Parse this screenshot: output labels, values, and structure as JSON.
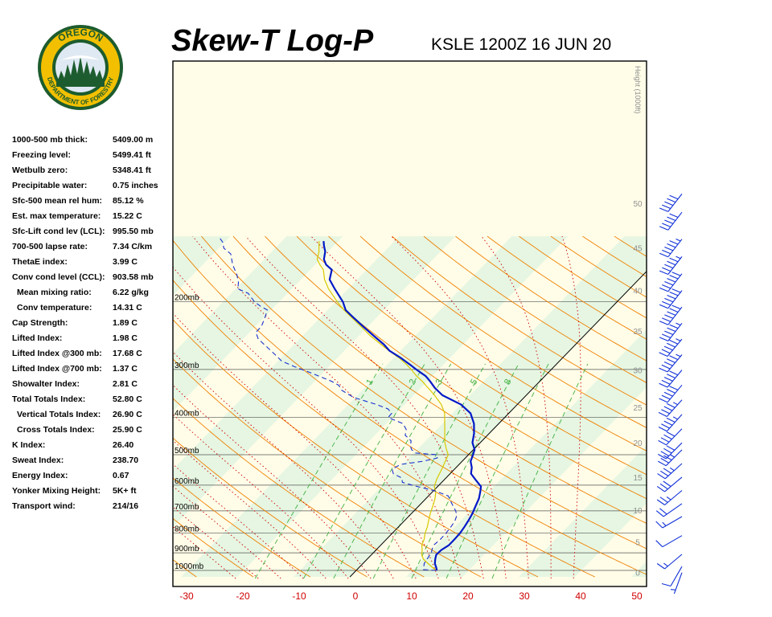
{
  "header": {
    "title": "Skew-T Log-P",
    "station_time": "KSLE 1200Z 16 JUN 20"
  },
  "logo": {
    "text_top": "OREGON",
    "text_bottom": "DEPARTMENT OF FORESTRY"
  },
  "indices": [
    {
      "label": "1000-500 mb thick:",
      "value": "5409.00 m",
      "indent": false
    },
    {
      "label": "Freezing level:",
      "value": "5499.41 ft",
      "indent": false
    },
    {
      "label": "Wetbulb zero:",
      "value": "5348.41 ft",
      "indent": false
    },
    {
      "label": "Precipitable water:",
      "value": "0.75 inches",
      "indent": false
    },
    {
      "label": "Sfc-500 mean rel hum:",
      "value": "85.12 %",
      "indent": false
    },
    {
      "label": "Est. max temperature:",
      "value": "15.22 C",
      "indent": false
    },
    {
      "label": "Sfc-Lift cond lev (LCL):",
      "value": "995.50 mb",
      "indent": false
    },
    {
      "label": "700-500 lapse rate:",
      "value": "7.34 C/km",
      "indent": false
    },
    {
      "label": "ThetaE index:",
      "value": "3.99 C",
      "indent": false
    },
    {
      "label": "Conv cond level (CCL):",
      "value": "903.58 mb",
      "indent": false
    },
    {
      "label": "Mean mixing ratio:",
      "value": "6.22 g/kg",
      "indent": true
    },
    {
      "label": "Conv temperature:",
      "value": "14.31 C",
      "indent": true
    },
    {
      "label": "Cap Strength:",
      "value": "1.89 C",
      "indent": false
    },
    {
      "label": "Lifted Index:",
      "value": "1.98 C",
      "indent": false
    },
    {
      "label": "Lifted Index @300 mb:",
      "value": "17.68 C",
      "indent": false
    },
    {
      "label": "Lifted Index @700 mb:",
      "value": "1.37 C",
      "indent": false
    },
    {
      "label": "Showalter Index:",
      "value": "2.81 C",
      "indent": false
    },
    {
      "label": "Total Totals Index:",
      "value": "52.80 C",
      "indent": false
    },
    {
      "label": "Vertical Totals Index:",
      "value": "26.90 C",
      "indent": true
    },
    {
      "label": "Cross Totals Index:",
      "value": "25.90 C",
      "indent": true
    },
    {
      "label": "K Index:",
      "value": "26.40",
      "indent": false
    },
    {
      "label": "Sweat Index:",
      "value": "238.70",
      "indent": false
    },
    {
      "label": "Energy Index:",
      "value": "0.67",
      "indent": false
    },
    {
      "label": "Yonker Mixing Height:",
      "value": "5K+ ft",
      "indent": false
    },
    {
      "label": "Transport wind:",
      "value": "214/16",
      "indent": false
    }
  ],
  "colors": {
    "temperature": "#0018c8",
    "dewpoint": "#1830d0",
    "parcel": "#d8c800",
    "dry_adiabat": "#f08000",
    "moist_adiabat": "#d00000",
    "mixing_ratio": "#40b040",
    "isotherm_band_a": "#fffde8",
    "isotherm_band_b": "#e6f6e2",
    "isobar": "#555555",
    "x_tick_label": "#d00000",
    "height_label": "#909090",
    "wind_barb": "#1030d8"
  },
  "chart_data": {
    "type": "line",
    "title": "Skew-T Log-P",
    "subtitle": "KSLE 1200Z 16 JUN 20",
    "xlabel": "",
    "ylabel": "",
    "x_ticks": [
      "-30",
      "-20",
      "-10",
      "0",
      "10",
      "20",
      "30",
      "40",
      "50"
    ],
    "isobar_labels": [
      "200mb",
      "300mb",
      "400mb",
      "500mb",
      "600mb",
      "700mb",
      "800mb",
      "900mb",
      "1000mb"
    ],
    "height_axis_label": "Height (1000ft)",
    "height_ticks": [
      "50",
      "45",
      "40",
      "35",
      "30",
      "25",
      "20",
      "15",
      "10",
      "5",
      "0"
    ],
    "mixing_ratio_labels": [
      "1",
      "2",
      "3",
      "5",
      "8"
    ],
    "pressure_range_mb": [
      1040,
      135
    ],
    "temperature_range_c": [
      -30,
      50
    ],
    "series": [
      {
        "key": "temperature",
        "points": [
          [
            14.3,
            1000
          ],
          [
            13.8,
            985
          ],
          [
            12.8,
            960
          ],
          [
            12.1,
            935
          ],
          [
            11.5,
            910
          ],
          [
            11.6,
            885
          ],
          [
            12.1,
            860
          ],
          [
            12.1,
            830
          ],
          [
            12.0,
            800
          ],
          [
            11.7,
            770
          ],
          [
            11.3,
            740
          ],
          [
            10.8,
            710
          ],
          [
            10.1,
            680
          ],
          [
            9.4,
            650
          ],
          [
            8.5,
            625
          ],
          [
            7.7,
            605
          ],
          [
            5.5,
            580
          ],
          [
            3.7,
            560
          ],
          [
            2.8,
            540
          ],
          [
            1.5,
            520
          ],
          [
            0.8,
            500
          ],
          [
            0.2,
            485
          ],
          [
            -1.4,
            465
          ],
          [
            -2.7,
            440
          ],
          [
            -4.4,
            415
          ],
          [
            -6.8,
            390
          ],
          [
            -10.0,
            370
          ],
          [
            -14.9,
            350
          ],
          [
            -17.5,
            335
          ],
          [
            -19.5,
            322
          ],
          [
            -21.2,
            312
          ],
          [
            -24.0,
            300
          ],
          [
            -25.8,
            292
          ],
          [
            -28.7,
            280
          ],
          [
            -32.0,
            268
          ],
          [
            -34.1,
            258
          ],
          [
            -37.4,
            245
          ],
          [
            -40.8,
            232
          ],
          [
            -44.6,
            218
          ],
          [
            -46.8,
            210
          ],
          [
            -48.7,
            200
          ],
          [
            -52.4,
            185
          ],
          [
            -54.9,
            175
          ],
          [
            -56.2,
            165
          ],
          [
            -58.1,
            160
          ],
          [
            -59.4,
            155
          ],
          [
            -60.5,
            148
          ],
          [
            -61.7,
            143
          ],
          [
            -62.6,
            139
          ]
        ]
      },
      {
        "key": "dewpoint",
        "points": [
          [
            14.2,
            1000
          ],
          [
            11.8,
            995
          ],
          [
            10.9,
            960
          ],
          [
            10.6,
            930
          ],
          [
            10.3,
            900
          ],
          [
            9.8,
            880
          ],
          [
            9.4,
            860
          ],
          [
            9.6,
            830
          ],
          [
            9.5,
            800
          ],
          [
            9.4,
            780
          ],
          [
            9.2,
            760
          ],
          [
            8.9,
            740
          ],
          [
            8.4,
            720
          ],
          [
            7.4,
            700
          ],
          [
            6.1,
            680
          ],
          [
            4.8,
            660
          ],
          [
            3.5,
            640
          ],
          [
            0.1,
            620
          ],
          [
            -3.6,
            605
          ],
          [
            -7.0,
            590
          ],
          [
            -7.8,
            575
          ],
          [
            -10.1,
            560
          ],
          [
            -11.1,
            545
          ],
          [
            -10.4,
            530
          ],
          [
            -7.0,
            520
          ],
          [
            -5.0,
            510
          ],
          [
            -5.6,
            500
          ],
          [
            -9.7,
            495
          ],
          [
            -11.0,
            485
          ],
          [
            -11.8,
            475
          ],
          [
            -12.6,
            460
          ],
          [
            -14.6,
            445
          ],
          [
            -15.4,
            430
          ],
          [
            -17.0,
            415
          ],
          [
            -20.7,
            400
          ],
          [
            -20.8,
            390
          ],
          [
            -22.2,
            380
          ],
          [
            -25.0,
            370
          ],
          [
            -30.2,
            355
          ],
          [
            -33.6,
            340
          ],
          [
            -35.0,
            330
          ],
          [
            -37.0,
            322
          ],
          [
            -39.2,
            315
          ],
          [
            -42.5,
            305
          ],
          [
            -46.1,
            295
          ],
          [
            -49.4,
            285
          ],
          [
            -51.5,
            275
          ],
          [
            -54.9,
            260
          ],
          [
            -57.3,
            250
          ],
          [
            -58.9,
            240
          ],
          [
            -58.9,
            232
          ],
          [
            -59.8,
            220
          ],
          [
            -60.7,
            210
          ],
          [
            -62.7,
            205
          ],
          [
            -64.4,
            200
          ],
          [
            -67.0,
            190
          ],
          [
            -69.6,
            185
          ],
          [
            -70.6,
            178
          ],
          [
            -72.2,
            170
          ],
          [
            -74.7,
            160
          ],
          [
            -76.9,
            150
          ],
          [
            -79.1,
            145
          ],
          [
            -80.3,
            140
          ],
          [
            -82.1,
            135
          ]
        ]
      },
      {
        "key": "parcel",
        "points": [
          [
            14.2,
            1000
          ],
          [
            13.2,
            985
          ],
          [
            11.6,
            960
          ],
          [
            10.0,
            935
          ],
          [
            8.9,
            910
          ],
          [
            8.2,
            885
          ],
          [
            7.3,
            860
          ],
          [
            6.7,
            830
          ],
          [
            5.8,
            800
          ],
          [
            5.1,
            770
          ],
          [
            4.2,
            740
          ],
          [
            3.3,
            710
          ],
          [
            2.5,
            680
          ],
          [
            1.6,
            650
          ],
          [
            0.6,
            625
          ],
          [
            -0.6,
            605
          ],
          [
            -1.4,
            580
          ],
          [
            -1.9,
            560
          ],
          [
            -2.4,
            540
          ],
          [
            -3.0,
            520
          ],
          [
            -3.6,
            500
          ],
          [
            -4.8,
            485
          ],
          [
            -6.3,
            465
          ],
          [
            -7.9,
            440
          ],
          [
            -9.6,
            415
          ],
          [
            -11.4,
            390
          ],
          [
            -13.5,
            370
          ],
          [
            -16.3,
            350
          ],
          [
            -18.7,
            335
          ],
          [
            -20.9,
            322
          ],
          [
            -22.8,
            312
          ],
          [
            -24.9,
            300
          ],
          [
            -26.4,
            292
          ],
          [
            -29.0,
            280
          ],
          [
            -32.1,
            268
          ],
          [
            -34.6,
            258
          ],
          [
            -38.0,
            245
          ],
          [
            -41.2,
            232
          ],
          [
            -44.9,
            218
          ],
          [
            -47.1,
            210
          ],
          [
            -49.7,
            200
          ],
          [
            -53.5,
            185
          ],
          [
            -55.8,
            175
          ],
          [
            -57.7,
            165
          ],
          [
            -59.2,
            160
          ],
          [
            -60.6,
            155
          ],
          [
            -61.6,
            148
          ],
          [
            -62.6,
            143
          ],
          [
            -63.4,
            139
          ]
        ]
      }
    ],
    "wind_barbs": [
      {
        "height_kft": 0,
        "dir": 200,
        "kt": 5
      },
      {
        "height_kft": 1,
        "dir": 210,
        "kt": 10
      },
      {
        "height_kft": 3,
        "dir": 230,
        "kt": 15
      },
      {
        "height_kft": 6,
        "dir": 240,
        "kt": 10
      },
      {
        "height_kft": 9,
        "dir": 240,
        "kt": 15
      },
      {
        "height_kft": 11,
        "dir": 235,
        "kt": 20
      },
      {
        "height_kft": 13,
        "dir": 230,
        "kt": 25
      },
      {
        "height_kft": 15,
        "dir": 230,
        "kt": 30
      },
      {
        "height_kft": 17,
        "dir": 228,
        "kt": 35
      },
      {
        "height_kft": 19,
        "dir": 225,
        "kt": 35
      },
      {
        "height_kft": 20,
        "dir": 225,
        "kt": 40
      },
      {
        "height_kft": 22,
        "dir": 224,
        "kt": 40
      },
      {
        "height_kft": 24,
        "dir": 222,
        "kt": 45
      },
      {
        "height_kft": 26,
        "dir": 222,
        "kt": 45
      },
      {
        "height_kft": 28,
        "dir": 220,
        "kt": 50
      },
      {
        "height_kft": 30,
        "dir": 220,
        "kt": 50
      },
      {
        "height_kft": 32,
        "dir": 220,
        "kt": 55
      },
      {
        "height_kft": 34,
        "dir": 220,
        "kt": 55
      },
      {
        "height_kft": 36,
        "dir": 218,
        "kt": 55
      },
      {
        "height_kft": 38,
        "dir": 218,
        "kt": 60
      },
      {
        "height_kft": 40,
        "dir": 218,
        "kt": 60
      },
      {
        "height_kft": 42,
        "dir": 218,
        "kt": 60
      },
      {
        "height_kft": 44,
        "dir": 218,
        "kt": 55
      },
      {
        "height_kft": 46,
        "dir": 218,
        "kt": 55
      },
      {
        "height_kft": 49,
        "dir": 218,
        "kt": 50
      },
      {
        "height_kft": 51,
        "dir": 218,
        "kt": 50
      }
    ]
  }
}
